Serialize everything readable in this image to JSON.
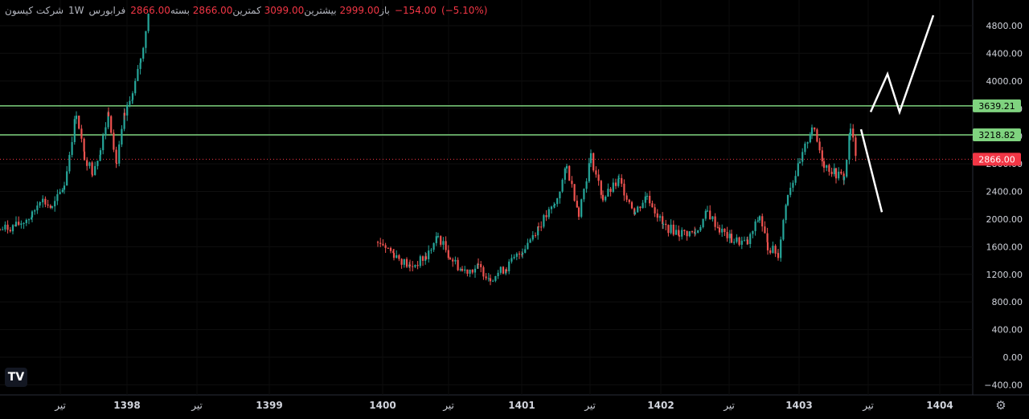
{
  "legend": {
    "symbol": "شرکت کیسون",
    "interval": "1W",
    "exchange": "فرابورس",
    "open_label": "باز",
    "open_value": "2999.00",
    "high_label": "بیشترین",
    "high_value": "3099.00",
    "low_label": "کمترین",
    "low_value": "2866.00",
    "close_label": "بسته",
    "close_value": "2866.00",
    "change": "−154.00",
    "change_pct": "(−5.10%)"
  },
  "logo_text": "TV",
  "colors": {
    "background": "#000000",
    "up": "#26a69a",
    "down": "#ef5350",
    "level_line": "#7fd37f",
    "last_price": "#f23645",
    "annotation": "#ffffff"
  },
  "icons": {
    "settings": "gear-icon",
    "logo": "tradingview-logo-icon"
  },
  "chart_data": {
    "type": "candlestick",
    "title": "",
    "y_axis": {
      "ticks": [
        "4800.00",
        "4400.00",
        "4000.00",
        "3600.00",
        "3200.00",
        "2800.00",
        "2400.00",
        "2000.00",
        "1600.00",
        "1200.00",
        "800.00",
        "400.00",
        "0.00",
        "−400.00"
      ],
      "range": [
        -450,
        5050
      ]
    },
    "x_axis": {
      "ticks": [
        {
          "label": "تیر",
          "bold": false
        },
        {
          "label": "1398",
          "bold": true
        },
        {
          "label": "تیر",
          "bold": false
        },
        {
          "label": "1399",
          "bold": true
        },
        {
          "label": "1400",
          "bold": true
        },
        {
          "label": "تیر",
          "bold": false
        },
        {
          "label": "1401",
          "bold": true
        },
        {
          "label": "تیر",
          "bold": false
        },
        {
          "label": "1402",
          "bold": true
        },
        {
          "label": "تیر",
          "bold": false
        },
        {
          "label": "1403",
          "bold": true
        },
        {
          "label": "تیر",
          "bold": false
        },
        {
          "label": "1404",
          "bold": true
        }
      ]
    },
    "horizontal_levels": [
      {
        "label": "3639.21",
        "value": 3639.21
      },
      {
        "label": "3218.82",
        "value": 3218.82
      }
    ],
    "last_price": {
      "label": "2866.00",
      "value": 2866.0
    },
    "price_path_segments": [
      {
        "points": [
          [
            0,
            1850
          ],
          [
            20,
            1900
          ],
          [
            40,
            2050
          ],
          [
            50,
            2300
          ],
          [
            65,
            2150
          ],
          [
            80,
            2500
          ],
          [
            95,
            3550
          ],
          [
            105,
            2900
          ],
          [
            115,
            2700
          ],
          [
            125,
            3000
          ],
          [
            135,
            3550
          ],
          [
            145,
            2800
          ],
          [
            155,
            3500
          ],
          [
            165,
            3800
          ],
          [
            175,
            4300
          ],
          [
            185,
            5000
          ]
        ]
      },
      {
        "points": [
          [
            470,
            1700
          ],
          [
            490,
            1500
          ],
          [
            510,
            1300
          ],
          [
            530,
            1450
          ],
          [
            545,
            1750
          ],
          [
            560,
            1450
          ],
          [
            575,
            1250
          ],
          [
            595,
            1300
          ],
          [
            610,
            1150
          ],
          [
            630,
            1300
          ],
          [
            650,
            1550
          ],
          [
            670,
            1900
          ],
          [
            690,
            2200
          ],
          [
            705,
            2750
          ],
          [
            720,
            2100
          ],
          [
            735,
            2900
          ],
          [
            750,
            2300
          ],
          [
            770,
            2550
          ],
          [
            790,
            2100
          ],
          [
            805,
            2350
          ],
          [
            825,
            1900
          ],
          [
            845,
            1800
          ],
          [
            865,
            1800
          ],
          [
            880,
            2100
          ],
          [
            895,
            1850
          ],
          [
            910,
            1700
          ],
          [
            930,
            1650
          ],
          [
            945,
            2050
          ],
          [
            955,
            1600
          ],
          [
            968,
            1500
          ],
          [
            980,
            2400
          ],
          [
            995,
            2800
          ],
          [
            1010,
            3350
          ],
          [
            1025,
            2800
          ],
          [
            1040,
            2650
          ],
          [
            1050,
            2600
          ],
          [
            1058,
            3300
          ],
          [
            1066,
            2866
          ]
        ]
      }
    ],
    "annotations": [
      {
        "type": "line",
        "points": [
          [
            1071,
            3300
          ],
          [
            1097,
            2100
          ]
        ]
      },
      {
        "type": "zigzag",
        "points": [
          [
            1083,
            3550
          ],
          [
            1104,
            4100
          ],
          [
            1119,
            3550
          ],
          [
            1161,
            4950
          ]
        ]
      }
    ]
  }
}
